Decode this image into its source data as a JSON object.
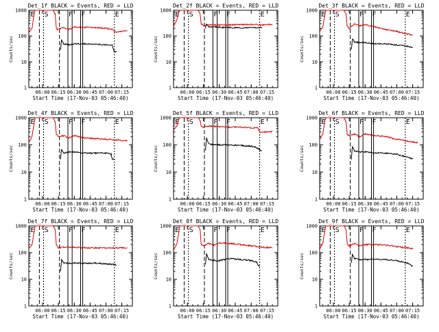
{
  "figure": {
    "x_axis_label": "Start Time (17-Nov-03 05:46:40)",
    "y_axis_label": "Counts/sec",
    "colors": {
      "events": "#000000",
      "lld": "#dd0000"
    }
  },
  "chart_data": [
    {
      "type": "line",
      "title": "Det_1f BLACK = Events, RED = LLD",
      "xlabel": "Start Time (17-Nov-03 05:46:40)",
      "ylabel": "Counts/sec",
      "x_ticks": [
        "06:00",
        "06:15",
        "06:30",
        "06:45",
        "07:00",
        "07:15"
      ],
      "y_ticks": [
        "1",
        "10",
        "100",
        "1000"
      ],
      "yscale": "log",
      "ylim": [
        1,
        1000
      ],
      "markers": [
        "E",
        "S",
        "F",
        "F",
        "E"
      ],
      "series": [
        {
          "name": "LLD",
          "color": "#dd0000",
          "x": [
            "05:47",
            "05:50",
            "05:52",
            "05:53",
            "05:58",
            "06:10",
            "06:12",
            "06:13",
            "06:14",
            "06:17",
            "06:20",
            "06:25",
            "06:30",
            "06:40",
            "06:50",
            "07:00",
            "07:07",
            "07:08",
            "07:13",
            "07:20"
          ],
          "values": [
            140,
            200,
            700,
            1000,
            1000,
            1000,
            700,
            200,
            180,
            200,
            210,
            180,
            220,
            220,
            210,
            200,
            180,
            140,
            150,
            160
          ]
        },
        {
          "name": "Events",
          "color": "#000000",
          "x": [
            "06:17",
            "06:18",
            "06:20",
            "06:25",
            "06:30",
            "06:40",
            "06:50",
            "07:00",
            "07:06",
            "07:07",
            "07:08",
            "07:10"
          ],
          "values": [
            30,
            70,
            50,
            45,
            50,
            50,
            48,
            45,
            45,
            30,
            25,
            25
          ]
        }
      ]
    },
    {
      "type": "line",
      "title": "Det_2f BLACK = Events, RED = LLD",
      "xlabel": "Start Time (17-Nov-03 05:46:40)",
      "ylabel": "Counts/sec",
      "x_ticks": [
        "06:00",
        "06:15",
        "06:30",
        "06:45",
        "07:00",
        "07:15"
      ],
      "y_ticks": [
        "1",
        "10",
        "100",
        "1000"
      ],
      "yscale": "log",
      "ylim": [
        1,
        1000
      ],
      "markers": [
        "E",
        "S",
        "F",
        "F",
        "E"
      ],
      "series": [
        {
          "name": "LLD",
          "color": "#dd0000",
          "x": [
            "05:47",
            "05:50",
            "05:52",
            "05:53",
            "05:58",
            "06:10",
            "06:12",
            "06:13",
            "06:15",
            "06:20",
            "06:30",
            "06:40",
            "06:50",
            "07:00",
            "07:10",
            "07:20"
          ],
          "values": [
            250,
            400,
            900,
            1000,
            1000,
            1000,
            700,
            300,
            260,
            270,
            270,
            270,
            280,
            280,
            270,
            290
          ]
        },
        {
          "name": "Events",
          "color": "#000000",
          "x": [
            "06:17",
            "06:18",
            "06:20",
            "06:30",
            "06:40",
            "06:45",
            "07:10"
          ],
          "values": [
            200,
            280,
            230,
            220,
            210,
            210,
            210
          ]
        }
      ]
    },
    {
      "type": "line",
      "title": "Det_3f BLACK = Events, RED = LLD",
      "xlabel": "Start Time (17-Nov-03 05:46:40)",
      "ylabel": "Counts/sec",
      "x_ticks": [
        "06:00",
        "06:15",
        "06:30",
        "06:45",
        "07:00",
        "07:15"
      ],
      "y_ticks": [
        "1",
        "10",
        "100",
        "1000"
      ],
      "yscale": "log",
      "ylim": [
        1,
        1000
      ],
      "markers": [
        "E",
        "S",
        "F",
        "F",
        "E"
      ],
      "series": [
        {
          "name": "LLD",
          "color": "#dd0000",
          "x": [
            "05:47",
            "05:50",
            "05:52",
            "05:53",
            "05:58",
            "06:10",
            "06:12",
            "06:13",
            "06:15",
            "06:20",
            "06:25",
            "06:30",
            "06:40",
            "06:50",
            "07:00",
            "07:10",
            "07:15"
          ],
          "values": [
            150,
            220,
            700,
            1000,
            1000,
            1000,
            700,
            250,
            200,
            300,
            250,
            280,
            220,
            180,
            150,
            120,
            110
          ]
        },
        {
          "name": "Events",
          "color": "#000000",
          "x": [
            "06:17",
            "06:18",
            "06:20",
            "06:25",
            "06:30",
            "06:40",
            "06:50",
            "07:00",
            "07:10",
            "07:15"
          ],
          "values": [
            30,
            80,
            60,
            55,
            55,
            50,
            50,
            45,
            40,
            35
          ]
        }
      ]
    },
    {
      "type": "line",
      "title": "Det_4f BLACK = Events, RED = LLD",
      "xlabel": "Start Time (17-Nov-03 05:46:40)",
      "ylabel": "Counts/sec",
      "x_ticks": [
        "06:00",
        "06:15",
        "06:30",
        "06:45",
        "07:00",
        "07:15"
      ],
      "y_ticks": [
        "1",
        "10",
        "100",
        "1000"
      ],
      "yscale": "log",
      "ylim": [
        1,
        1000
      ],
      "markers": [
        "E",
        "S",
        "F",
        "F",
        "E"
      ],
      "series": [
        {
          "name": "LLD",
          "color": "#dd0000",
          "x": [
            "05:47",
            "05:50",
            "05:52",
            "05:53",
            "05:58",
            "06:10",
            "06:12",
            "06:13",
            "06:15",
            "06:20",
            "06:25",
            "06:30",
            "06:40",
            "06:50",
            "07:00",
            "07:10",
            "07:20"
          ],
          "values": [
            120,
            200,
            600,
            1000,
            1000,
            1000,
            700,
            250,
            200,
            220,
            180,
            220,
            180,
            170,
            160,
            150,
            140
          ]
        },
        {
          "name": "Events",
          "color": "#000000",
          "x": [
            "06:17",
            "06:18",
            "06:20",
            "06:25",
            "06:30",
            "06:40",
            "06:50",
            "07:00",
            "07:05",
            "07:06",
            "07:08"
          ],
          "values": [
            30,
            70,
            50,
            55,
            55,
            50,
            50,
            50,
            45,
            30,
            30
          ]
        }
      ]
    },
    {
      "type": "line",
      "title": "Det_5f BLACK = Events, RED = LLD",
      "xlabel": "Start Time (17-Nov-03 05:46:40)",
      "ylabel": "Counts/sec",
      "x_ticks": [
        "06:00",
        "06:15",
        "06:30",
        "06:45",
        "07:00",
        "07:15"
      ],
      "y_ticks": [
        "1",
        "10",
        "100",
        "1000"
      ],
      "yscale": "log",
      "ylim": [
        1,
        1000
      ],
      "markers": [
        "E",
        "S",
        "F",
        "F",
        "E"
      ],
      "series": [
        {
          "name": "LLD",
          "color": "#dd0000",
          "x": [
            "05:47",
            "05:50",
            "05:52",
            "05:53",
            "05:58",
            "06:10",
            "06:12",
            "06:13",
            "06:15",
            "06:20",
            "06:30",
            "06:40",
            "06:50",
            "07:00",
            "07:06",
            "07:08",
            "07:15",
            "07:20"
          ],
          "values": [
            350,
            500,
            900,
            1000,
            1000,
            1000,
            800,
            500,
            450,
            500,
            460,
            450,
            450,
            420,
            420,
            300,
            300,
            310
          ]
        },
        {
          "name": "Events",
          "color": "#000000",
          "x": [
            "06:17",
            "06:18",
            "06:20",
            "06:25",
            "06:30",
            "06:40",
            "06:50",
            "07:00",
            "07:05",
            "07:10"
          ],
          "values": [
            60,
            180,
            110,
            100,
            100,
            100,
            95,
            90,
            80,
            60
          ]
        }
      ]
    },
    {
      "type": "line",
      "title": "Det_6f BLACK = Events, RED = LLD",
      "xlabel": "Start Time (17-Nov-03 05:46:40)",
      "ylabel": "Counts/sec",
      "x_ticks": [
        "06:00",
        "06:15",
        "06:30",
        "06:45",
        "07:00",
        "07:15"
      ],
      "y_ticks": [
        "1",
        "10",
        "100",
        "1000"
      ],
      "yscale": "log",
      "ylim": [
        1,
        1000
      ],
      "markers": [
        "E",
        "S",
        "F",
        "F",
        "E"
      ],
      "series": [
        {
          "name": "LLD",
          "color": "#dd0000",
          "x": [
            "05:47",
            "05:50",
            "05:52",
            "05:53",
            "05:58",
            "06:10",
            "06:12",
            "06:13",
            "06:15",
            "06:20",
            "06:25",
            "06:30",
            "06:40",
            "06:50",
            "07:00",
            "07:10",
            "07:20"
          ],
          "values": [
            160,
            250,
            800,
            1000,
            1000,
            1000,
            700,
            250,
            220,
            250,
            200,
            250,
            220,
            200,
            160,
            140,
            120
          ]
        },
        {
          "name": "Events",
          "color": "#000000",
          "x": [
            "06:17",
            "06:18",
            "06:20",
            "06:25",
            "06:30",
            "06:40",
            "06:50",
            "07:00",
            "07:10",
            "07:15"
          ],
          "values": [
            30,
            90,
            60,
            55,
            55,
            50,
            50,
            45,
            35,
            30
          ]
        }
      ]
    },
    {
      "type": "line",
      "title": "Det_7f BLACK = Events, RED = LLD",
      "xlabel": "Start Time (17-Nov-03 05:46:40)",
      "ylabel": "Counts/sec",
      "x_ticks": [
        "06:00",
        "06:15",
        "06:30",
        "06:45",
        "07:00",
        "07:15"
      ],
      "y_ticks": [
        "1",
        "10",
        "100",
        "1000"
      ],
      "yscale": "log",
      "ylim": [
        1,
        1000
      ],
      "markers": [
        "E",
        "S",
        "F",
        "F",
        "E"
      ],
      "series": [
        {
          "name": "LLD",
          "color": "#dd0000",
          "x": [
            "05:47",
            "05:50",
            "05:52",
            "05:53",
            "05:58",
            "06:10",
            "06:12",
            "06:13",
            "06:15",
            "06:20",
            "06:30",
            "06:40",
            "06:50",
            "07:00",
            "07:10",
            "07:20"
          ],
          "values": [
            140,
            200,
            600,
            1000,
            1000,
            1000,
            700,
            200,
            150,
            160,
            160,
            150,
            150,
            150,
            150,
            150
          ]
        },
        {
          "name": "Events",
          "color": "#000000",
          "x": [
            "06:17",
            "06:18",
            "06:20",
            "06:30",
            "06:40",
            "06:50",
            "07:00",
            "07:10"
          ],
          "values": [
            20,
            55,
            40,
            40,
            40,
            40,
            38,
            35
          ]
        }
      ]
    },
    {
      "type": "line",
      "title": "Det_8f BLACK = Events, RED = LLD",
      "xlabel": "Start Time (17-Nov-03 05:46:40)",
      "ylabel": "Counts/sec",
      "x_ticks": [
        "06:00",
        "06:15",
        "06:30",
        "06:45",
        "07:00",
        "07:15"
      ],
      "y_ticks": [
        "1",
        "10",
        "100",
        "1000"
      ],
      "yscale": "log",
      "ylim": [
        1,
        1000
      ],
      "markers": [
        "E",
        "S",
        "F",
        "F",
        "E"
      ],
      "series": [
        {
          "name": "LLD",
          "color": "#dd0000",
          "x": [
            "05:47",
            "05:50",
            "05:52",
            "05:53",
            "05:58",
            "06:10",
            "06:12",
            "06:13",
            "06:15",
            "06:20",
            "06:25",
            "06:30",
            "06:40",
            "06:50",
            "07:00",
            "07:10",
            "07:20"
          ],
          "values": [
            130,
            200,
            600,
            1000,
            1000,
            1000,
            700,
            200,
            180,
            220,
            190,
            230,
            220,
            200,
            180,
            160,
            150
          ]
        },
        {
          "name": "Events",
          "color": "#000000",
          "x": [
            "06:17",
            "06:18",
            "06:20",
            "06:25",
            "06:30",
            "06:40",
            "06:50",
            "07:00",
            "07:05",
            "07:06",
            "07:08"
          ],
          "values": [
            35,
            90,
            55,
            50,
            50,
            60,
            55,
            50,
            45,
            35,
            30
          ]
        }
      ]
    },
    {
      "type": "line",
      "title": "Det_9f BLACK = Events, RED = LLD",
      "xlabel": "Start Time (17-Nov-03 05:46:40)",
      "ylabel": "Counts/sec",
      "x_ticks": [
        "06:00",
        "06:15",
        "06:30",
        "06:45",
        "07:00",
        "07:15"
      ],
      "y_ticks": [
        "1",
        "10",
        "100",
        "1000"
      ],
      "yscale": "log",
      "ylim": [
        1,
        1000
      ],
      "markers": [
        "E",
        "S",
        "F",
        "F",
        "E"
      ],
      "series": [
        {
          "name": "LLD",
          "color": "#dd0000",
          "x": [
            "05:47",
            "05:50",
            "05:52",
            "05:53",
            "05:58",
            "06:10",
            "06:12",
            "06:13",
            "06:15",
            "06:20",
            "06:25",
            "06:30",
            "06:40",
            "06:50",
            "07:00",
            "07:10",
            "07:15"
          ],
          "values": [
            140,
            220,
            700,
            1000,
            1000,
            1000,
            700,
            220,
            180,
            220,
            180,
            200,
            200,
            190,
            170,
            150,
            140
          ]
        },
        {
          "name": "Events",
          "color": "#000000",
          "x": [
            "06:17",
            "06:18",
            "06:20",
            "06:25",
            "06:30",
            "06:40",
            "06:50",
            "07:00",
            "07:10",
            "07:15"
          ],
          "values": [
            40,
            90,
            60,
            55,
            55,
            55,
            55,
            50,
            40,
            30
          ]
        }
      ]
    }
  ]
}
